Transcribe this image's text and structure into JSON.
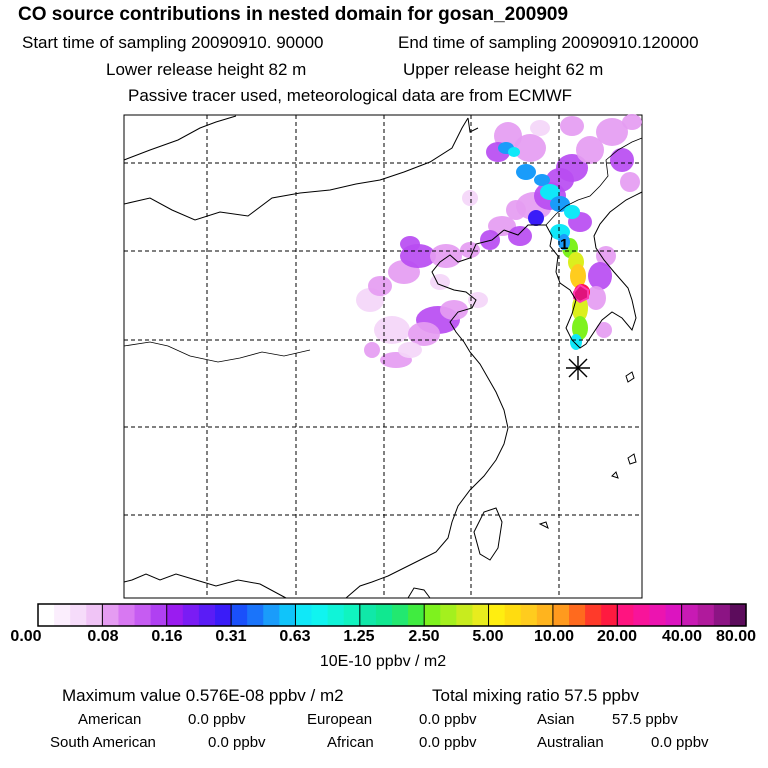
{
  "header": {
    "title": "CO  source contributions in nested domain for gosan_200909",
    "start_time": "Start time of sampling 20090910. 90000",
    "end_time": "End time of sampling 20090910.120000",
    "lower_release": "Lower release height   82 m",
    "upper_release": "Upper release height   62 m",
    "note": "Passive tracer used, meteorological data are from ECMWF"
  },
  "map": {
    "receptor_label": "1",
    "receptor_marker": "asterisk-icon",
    "plume_palette": [
      "#f4d6f8",
      "#e59cf2",
      "#b84cf2",
      "#9a1cf0",
      "#3a1cf8",
      "#1a9cfa",
      "#10e8f8",
      "#22e88a",
      "#7ef21e",
      "#dcef1e",
      "#ffcc1e",
      "#ff1450"
    ]
  },
  "colorbar": {
    "ticks": [
      "0.00",
      "0.08",
      "0.16",
      "0.31",
      "0.63",
      "1.25",
      "2.50",
      "5.00",
      "10.00",
      "20.00",
      "40.00",
      "80.00"
    ],
    "colors": [
      [
        "#ffffff",
        "#fbeefd",
        "#f6dcfa",
        "#f0c4f6"
      ],
      [
        "#e59cf2",
        "#d878f2",
        "#c65cf2",
        "#b040f2"
      ],
      [
        "#9a1cf0",
        "#7a1cf4",
        "#5a1cf6",
        "#3a1cf8"
      ],
      [
        "#1a50fa",
        "#1a74fa",
        "#1a9cfa",
        "#10c4fa"
      ],
      [
        "#10e8f8",
        "#10f4f0",
        "#10f4d8",
        "#10f4c0"
      ],
      [
        "#10e8a8",
        "#10e890",
        "#22e870",
        "#40ec40"
      ],
      [
        "#7ef21e",
        "#a4f01e",
        "#c8ec1e",
        "#e8ec1e"
      ],
      [
        "#ffee10",
        "#ffdc10",
        "#ffcc1e",
        "#ffb41e"
      ],
      [
        "#ff9a1e",
        "#ff6a1e",
        "#ff3a2a",
        "#ff1a40"
      ],
      [
        "#ff1480",
        "#f8149a",
        "#ec14b0",
        "#dc14c0"
      ],
      [
        "#c81ab4",
        "#b01a9c",
        "#8c1484",
        "#5c0c5c"
      ]
    ],
    "unit": "10E-10 ppbv / m2"
  },
  "stats": {
    "max_value": "Maximum value  0.576E-08 ppbv / m2",
    "total_mixing": "Total mixing ratio       57.5 ppbv",
    "american_label": "American",
    "american_value": "0.0 ppbv",
    "european_label": "European",
    "european_value": "0.0 ppbv",
    "asian_label": "Asian",
    "asian_value": "57.5 ppbv",
    "south_american_label": "South American",
    "south_american_value": "0.0 ppbv",
    "african_label": "African",
    "african_value": "0.0 ppbv",
    "australian_label": "Australian",
    "australian_value": "0.0 ppbv"
  }
}
